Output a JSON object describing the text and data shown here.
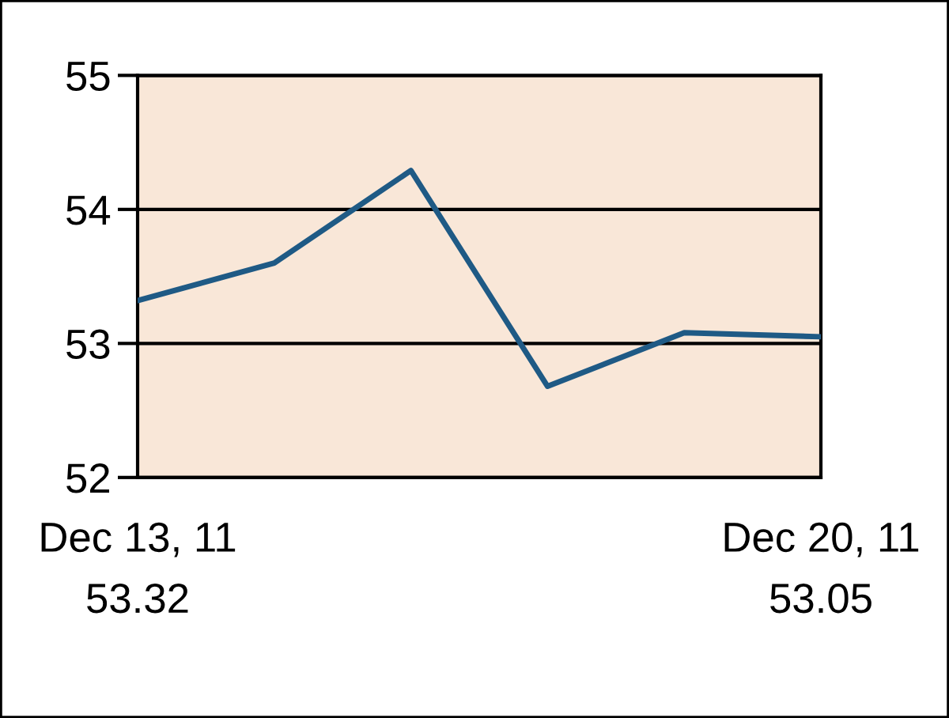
{
  "chart_data": {
    "type": "line",
    "categories": [
      "Dec 13, 11",
      null,
      null,
      null,
      null,
      "Dec 20, 11"
    ],
    "series": [
      {
        "color": "#1f5a85",
        "values": [
          53.32,
          53.6,
          54.29,
          52.68,
          53.08,
          53.05
        ],
        "value_labels": [
          "53.32",
          null,
          null,
          null,
          null,
          "53.05"
        ]
      }
    ],
    "ylim": [
      52,
      55
    ],
    "yticks": [
      52,
      53,
      54,
      55
    ],
    "grid": "y",
    "marker": "none",
    "line_style": "solid"
  }
}
